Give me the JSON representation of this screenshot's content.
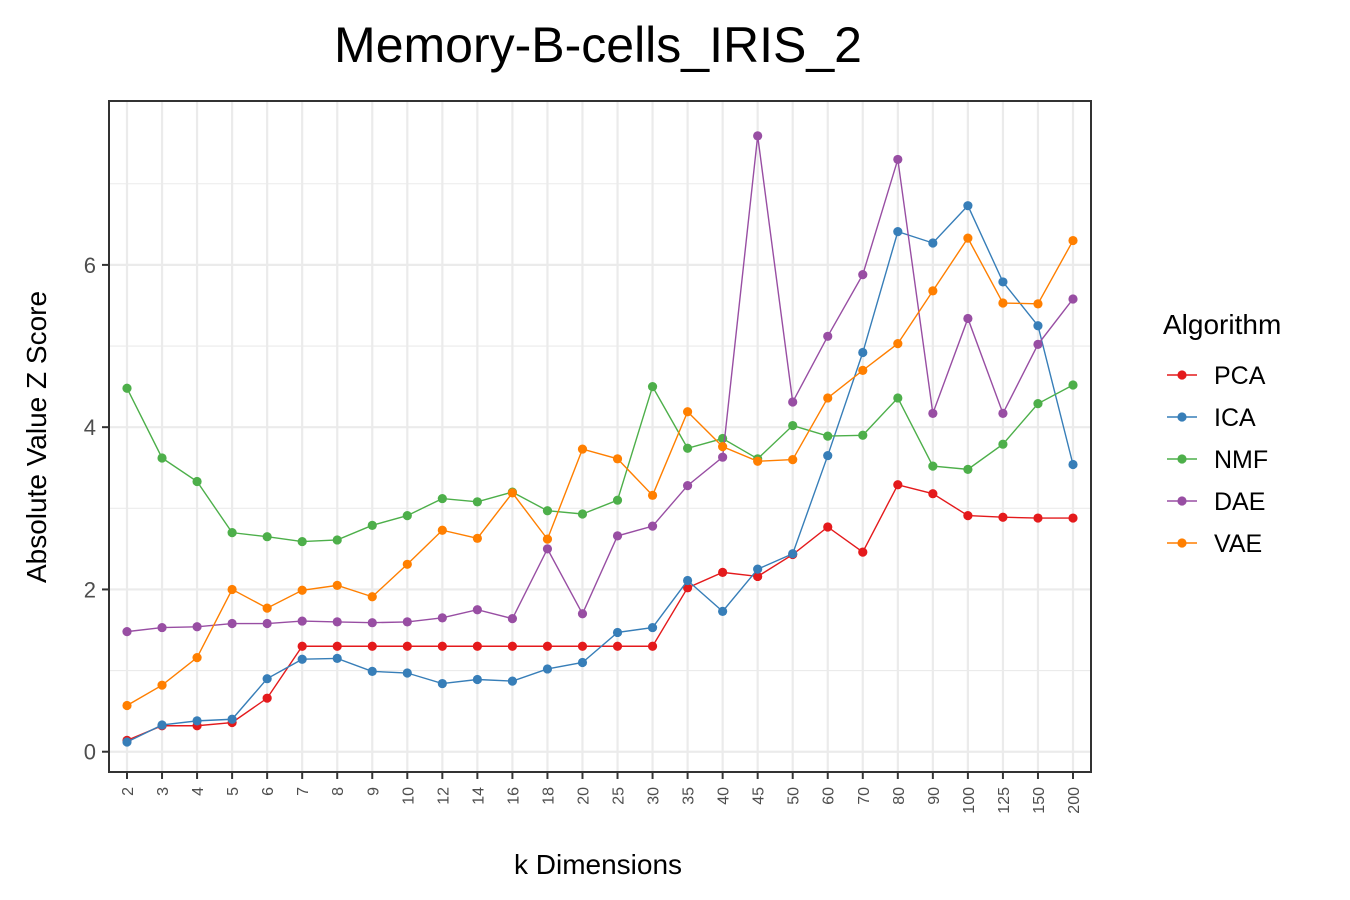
{
  "chart_data": {
    "type": "line",
    "title": "Memory-B-cells_IRIS_2",
    "xlabel": "k Dimensions",
    "ylabel": "Absolute Value Z Score",
    "ylim": [
      -0.25,
      8.02
    ],
    "yticks": [
      0,
      2,
      4,
      6
    ],
    "grid": true,
    "legend_title": "Algorithm",
    "legend_position": "right",
    "categories": [
      "2",
      "3",
      "4",
      "5",
      "6",
      "7",
      "8",
      "9",
      "10",
      "12",
      "14",
      "16",
      "18",
      "20",
      "25",
      "30",
      "35",
      "40",
      "45",
      "50",
      "60",
      "70",
      "80",
      "90",
      "100",
      "125",
      "150",
      "200"
    ],
    "series": [
      {
        "name": "PCA",
        "color": "#E41A1C",
        "values": [
          0.14,
          0.32,
          0.32,
          0.36,
          0.66,
          1.3,
          1.3,
          1.3,
          1.3,
          1.3,
          1.3,
          1.3,
          1.3,
          1.3,
          1.3,
          1.3,
          2.02,
          2.21,
          2.16,
          2.43,
          2.77,
          2.46,
          3.29,
          3.18,
          2.91,
          2.89,
          2.88,
          2.88
        ]
      },
      {
        "name": "ICA",
        "color": "#377EB8",
        "values": [
          0.12,
          0.33,
          0.38,
          0.4,
          0.9,
          1.14,
          1.15,
          0.99,
          0.97,
          0.84,
          0.89,
          0.87,
          1.02,
          1.1,
          1.47,
          1.53,
          2.11,
          1.73,
          2.25,
          2.44,
          3.65,
          4.92,
          6.41,
          6.27,
          6.73,
          5.79,
          5.25,
          3.54
        ]
      },
      {
        "name": "NMF",
        "color": "#4DAF4A",
        "values": [
          4.48,
          3.62,
          3.33,
          2.7,
          2.65,
          2.59,
          2.61,
          2.79,
          2.91,
          3.12,
          3.08,
          3.2,
          2.97,
          2.93,
          3.1,
          4.5,
          3.74,
          3.86,
          3.61,
          4.02,
          3.89,
          3.9,
          4.36,
          3.52,
          3.48,
          3.79,
          4.29,
          4.52
        ]
      },
      {
        "name": "DAE",
        "color": "#984EA3",
        "values": [
          1.48,
          1.53,
          1.54,
          1.58,
          1.58,
          1.61,
          1.6,
          1.59,
          1.6,
          1.65,
          1.75,
          1.64,
          2.5,
          1.7,
          2.66,
          2.78,
          3.28,
          3.63,
          7.59,
          4.31,
          5.12,
          5.88,
          7.3,
          4.17,
          5.34,
          4.17,
          5.02,
          5.58
        ]
      },
      {
        "name": "VAE",
        "color": "#FF7F00",
        "values": [
          0.57,
          0.82,
          1.16,
          2.0,
          1.77,
          1.99,
          2.05,
          1.91,
          2.31,
          2.73,
          2.63,
          3.19,
          2.62,
          3.73,
          3.61,
          3.16,
          4.19,
          3.76,
          3.58,
          3.6,
          4.36,
          4.7,
          5.03,
          5.68,
          6.33,
          5.53,
          5.52,
          6.3
        ]
      }
    ]
  }
}
